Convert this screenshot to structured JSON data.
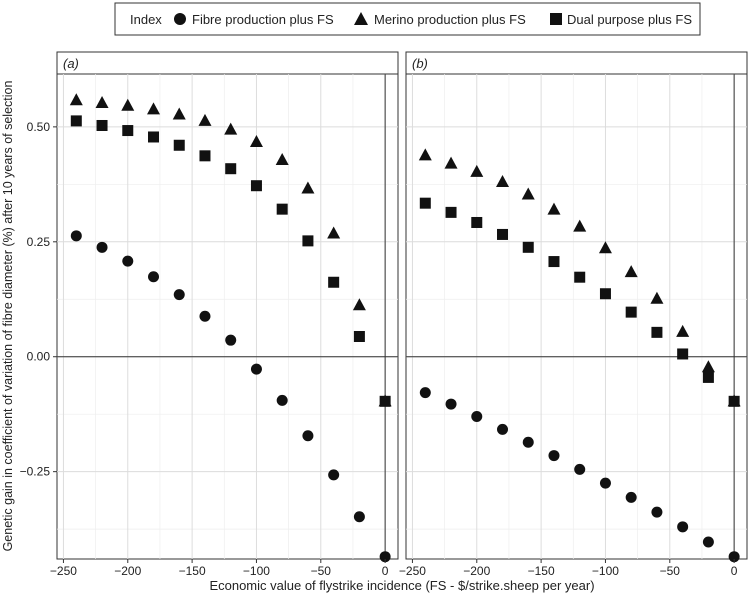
{
  "legend": {
    "title": "Index",
    "placement": "top",
    "entries": [
      {
        "label": "Fibre production plus FS",
        "marker": "circle"
      },
      {
        "label": "Merino production plus FS",
        "marker": "triangle"
      },
      {
        "label": "Dual purpose plus FS",
        "marker": "square"
      }
    ]
  },
  "chart_data": {
    "type": "scatter",
    "xlabel": "Economic value of flystrike incidence (FS - $/strike.sheep per year)",
    "ylabel": "Genetic gain in coefficient of variation of fibre diameter (%) after 10 years of selection",
    "xlim": [
      -255,
      10
    ],
    "ylim": [
      -0.44,
      0.615
    ],
    "x_ticks": [
      -250,
      -200,
      -150,
      -100,
      -50,
      0
    ],
    "x_tick_labels": [
      "−250",
      "−200",
      "−150",
      "−100",
      "−50",
      "0"
    ],
    "y_ticks": [
      -0.25,
      0.0,
      0.25,
      0.5
    ],
    "y_tick_labels": [
      "−0.25",
      "0.00",
      "0.25",
      "0.50"
    ],
    "grid": true,
    "reference_lines": {
      "y": 0,
      "x": 0
    },
    "x": [
      -240,
      -220,
      -200,
      -180,
      -160,
      -140,
      -120,
      -100,
      -80,
      -60,
      -40,
      -20,
      0
    ],
    "panels": [
      {
        "label": "(a)",
        "series": [
          {
            "name": "Fibre production plus FS",
            "marker": "circle",
            "values": [
              0.263,
              0.238,
              0.208,
              0.174,
              0.135,
              0.088,
              0.036,
              -0.027,
              -0.095,
              -0.172,
              -0.257,
              -0.348,
              -0.435
            ]
          },
          {
            "name": "Merino production plus FS",
            "marker": "triangle",
            "values": [
              0.558,
              0.552,
              0.546,
              0.538,
              0.527,
              0.513,
              0.494,
              0.467,
              0.428,
              0.366,
              0.268,
              0.112,
              -0.097
            ]
          },
          {
            "name": "Dual purpose plus FS",
            "marker": "square",
            "values": [
              0.513,
              0.503,
              0.492,
              0.478,
              0.46,
              0.437,
              0.409,
              0.372,
              0.321,
              0.252,
              0.162,
              0.044,
              -0.097
            ]
          }
        ]
      },
      {
        "label": "(b)",
        "series": [
          {
            "name": "Fibre production plus FS",
            "marker": "circle",
            "values": [
              -0.078,
              -0.103,
              -0.13,
              -0.158,
              -0.186,
              -0.215,
              -0.245,
              -0.275,
              -0.306,
              -0.338,
              -0.37,
              -0.403,
              -0.435
            ]
          },
          {
            "name": "Merino production plus FS",
            "marker": "triangle",
            "values": [
              0.438,
              0.42,
              0.402,
              0.38,
              0.353,
              0.32,
              0.283,
              0.236,
              0.184,
              0.126,
              0.054,
              -0.023,
              -0.097
            ]
          },
          {
            "name": "Dual purpose plus FS",
            "marker": "square",
            "values": [
              0.334,
              0.314,
              0.292,
              0.266,
              0.238,
              0.207,
              0.173,
              0.137,
              0.097,
              0.053,
              0.006,
              -0.045,
              -0.097
            ]
          }
        ]
      }
    ]
  }
}
